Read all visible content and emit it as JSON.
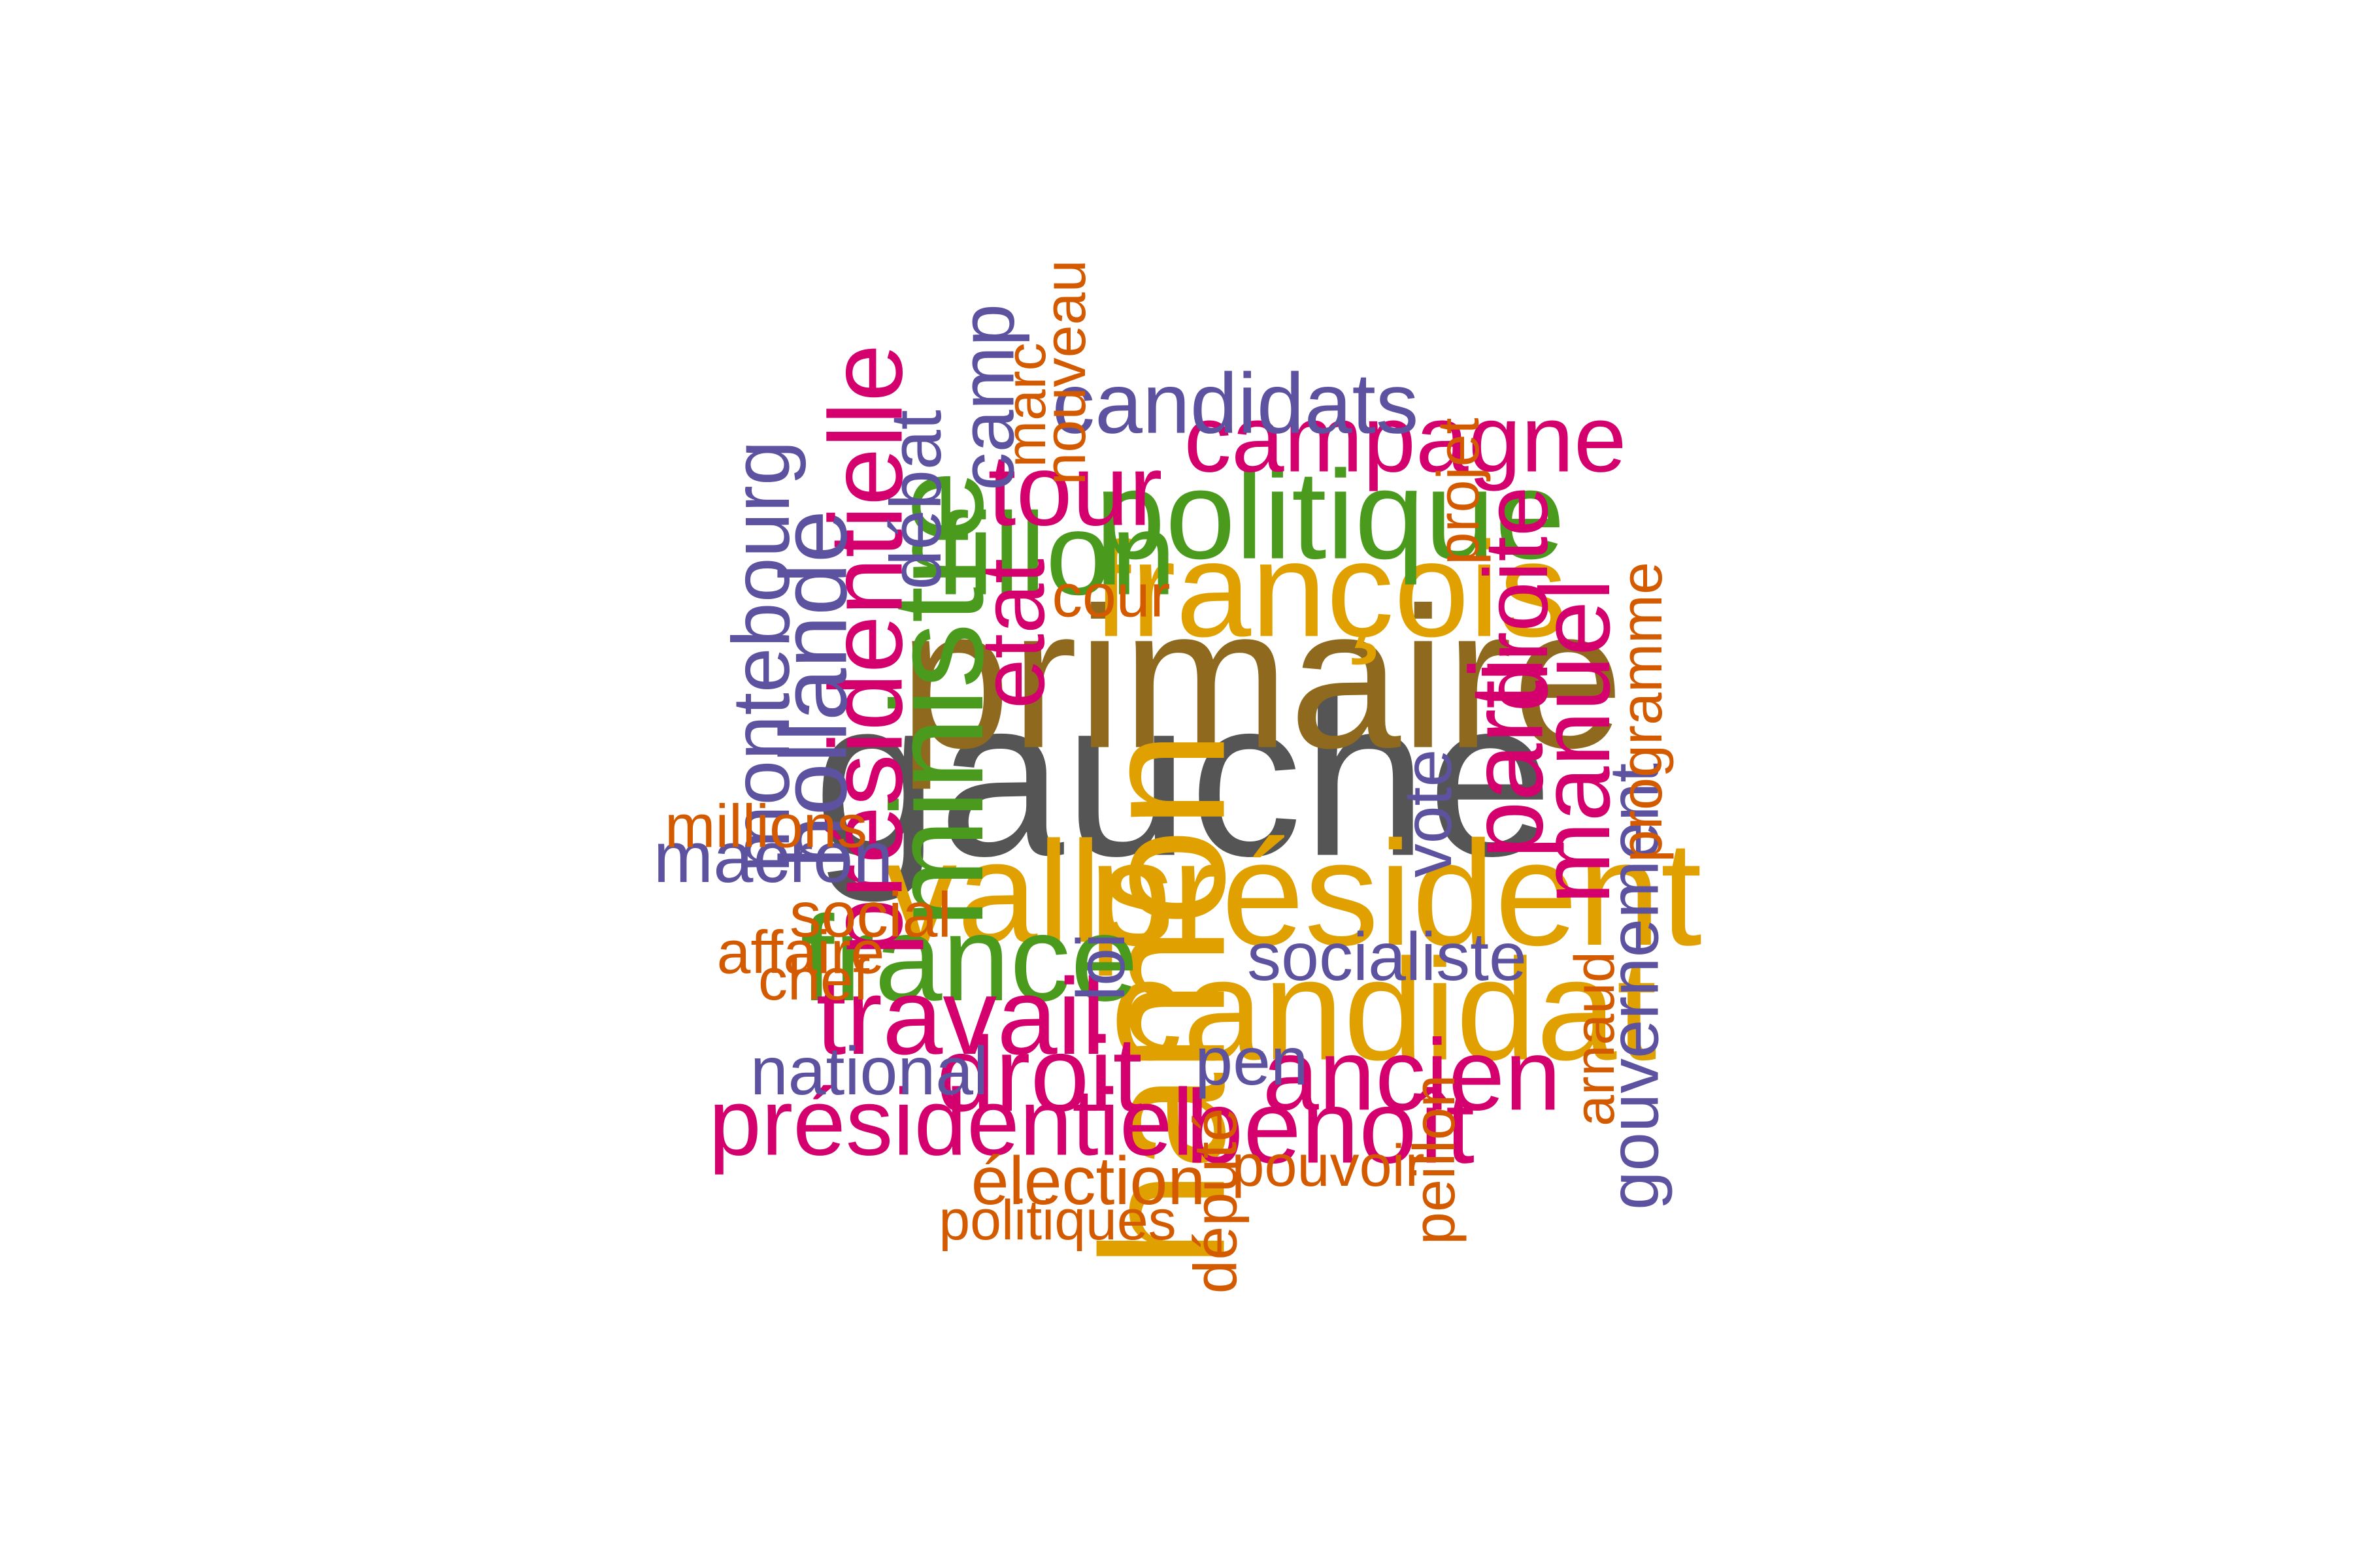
{
  "palette": {
    "green": "#4a9a1e",
    "olive_brown": "#8f6a1e",
    "gold": "#e0a000",
    "magenta": "#d4006e",
    "purple": "#5c52a0",
    "orange": "#d45a00",
    "dark_gray": "#555555"
  },
  "words": [
    {
      "text": "gauche",
      "color": "dark_gray",
      "weight": 1.0,
      "orientation": "horizontal"
    },
    {
      "text": "primaire",
      "color": "olive_brown",
      "weight": 0.89,
      "orientation": "horizontal"
    },
    {
      "text": "hamon",
      "color": "gold",
      "weight": 0.78,
      "orientation": "vertical"
    },
    {
      "text": "président",
      "color": "gold",
      "weight": 0.66,
      "orientation": "horizontal"
    },
    {
      "text": "valls",
      "color": "gold",
      "weight": 0.64,
      "orientation": "horizontal"
    },
    {
      "text": "candidat",
      "color": "gold",
      "weight": 0.64,
      "orientation": "horizontal"
    },
    {
      "text": "françois",
      "color": "gold",
      "weight": 0.6,
      "orientation": "horizontal"
    },
    {
      "text": "ministre",
      "color": "green",
      "weight": 0.58,
      "orientation": "vertical"
    },
    {
      "text": "politique",
      "color": "green",
      "weight": 0.56,
      "orientation": "horizontal"
    },
    {
      "text": "france",
      "color": "green",
      "weight": 0.54,
      "orientation": "horizontal"
    },
    {
      "text": "fillon",
      "color": "green",
      "weight": 0.52,
      "orientation": "horizontal"
    },
    {
      "text": "présidentielle",
      "color": "magenta",
      "weight": 0.46,
      "orientation": "vertical"
    },
    {
      "text": "parti",
      "color": "magenta",
      "weight": 0.46,
      "orientation": "vertical"
    },
    {
      "text": "travail",
      "color": "magenta",
      "weight": 0.48,
      "orientation": "horizontal"
    },
    {
      "text": "droit",
      "color": "magenta",
      "weight": 0.47,
      "orientation": "horizontal"
    },
    {
      "text": "benoît",
      "color": "magenta",
      "weight": 0.46,
      "orientation": "horizontal"
    },
    {
      "text": "ancien",
      "color": "magenta",
      "weight": 0.45,
      "orientation": "horizontal"
    },
    {
      "text": "tour",
      "color": "magenta",
      "weight": 0.45,
      "orientation": "horizontal"
    },
    {
      "text": "manuel",
      "color": "magenta",
      "weight": 0.44,
      "orientation": "vertical"
    },
    {
      "text": "présidentiel",
      "color": "magenta",
      "weight": 0.42,
      "orientation": "horizontal"
    },
    {
      "text": "campagne",
      "color": "magenta",
      "weight": 0.42,
      "orientation": "horizontal"
    },
    {
      "text": "etat",
      "color": "magenta",
      "weight": 0.4,
      "orientation": "vertical"
    },
    {
      "text": "droite",
      "color": "magenta",
      "weight": 0.4,
      "orientation": "vertical"
    },
    {
      "text": "hollande",
      "color": "purple",
      "weight": 0.42,
      "orientation": "vertical"
    },
    {
      "text": "candidats",
      "color": "purple",
      "weight": 0.38,
      "orientation": "horizontal"
    },
    {
      "text": "montebourg",
      "color": "purple",
      "weight": 0.36,
      "orientation": "vertical"
    },
    {
      "text": "camp",
      "color": "purple",
      "weight": 0.34,
      "orientation": "vertical"
    },
    {
      "text": "macron",
      "color": "purple",
      "weight": 0.32,
      "orientation": "horizontal"
    },
    {
      "text": "débat",
      "color": "purple",
      "weight": 0.32,
      "orientation": "vertical"
    },
    {
      "text": "gouvernement",
      "color": "purple",
      "weight": 0.31,
      "orientation": "vertical"
    },
    {
      "text": "vote",
      "color": "purple",
      "weight": 0.3,
      "orientation": "vertical"
    },
    {
      "text": "socialiste",
      "color": "purple",
      "weight": 0.3,
      "orientation": "horizontal"
    },
    {
      "text": "loi",
      "color": "purple",
      "weight": 0.3,
      "orientation": "vertical"
    },
    {
      "text": "national",
      "color": "purple",
      "weight": 0.3,
      "orientation": "horizontal"
    },
    {
      "text": "pen",
      "color": "purple",
      "weight": 0.3,
      "orientation": "horizontal"
    },
    {
      "text": "élection",
      "color": "orange",
      "weight": 0.3,
      "orientation": "horizontal"
    },
    {
      "text": "social",
      "color": "orange",
      "weight": 0.28,
      "orientation": "horizontal"
    },
    {
      "text": "millions",
      "color": "orange",
      "weight": 0.27,
      "orientation": "horizontal"
    },
    {
      "text": "cour",
      "color": "orange",
      "weight": 0.27,
      "orientation": "horizontal"
    },
    {
      "text": "affaire",
      "color": "orange",
      "weight": 0.27,
      "orientation": "horizontal"
    },
    {
      "text": "chef",
      "color": "orange",
      "weight": 0.26,
      "orientation": "horizontal"
    },
    {
      "text": "pouvoir",
      "color": "orange",
      "weight": 0.26,
      "orientation": "horizontal"
    },
    {
      "text": "politiques",
      "color": "orange",
      "weight": 0.25,
      "orientation": "horizontal"
    },
    {
      "text": "nouveau",
      "color": "orange",
      "weight": 0.26,
      "orientation": "vertical"
    },
    {
      "text": "marc",
      "color": "orange",
      "weight": 0.25,
      "orientation": "vertical"
    },
    {
      "text": "projet",
      "color": "orange",
      "weight": 0.26,
      "orientation": "vertical"
    },
    {
      "text": "programme",
      "color": "orange",
      "weight": 0.26,
      "orientation": "vertical"
    },
    {
      "text": "arnaud",
      "color": "orange",
      "weight": 0.25,
      "orientation": "vertical"
    },
    {
      "text": "peillon",
      "color": "orange",
      "weight": 0.26,
      "orientation": "vertical"
    },
    {
      "text": "député",
      "color": "orange",
      "weight": 0.27,
      "orientation": "vertical"
    }
  ]
}
